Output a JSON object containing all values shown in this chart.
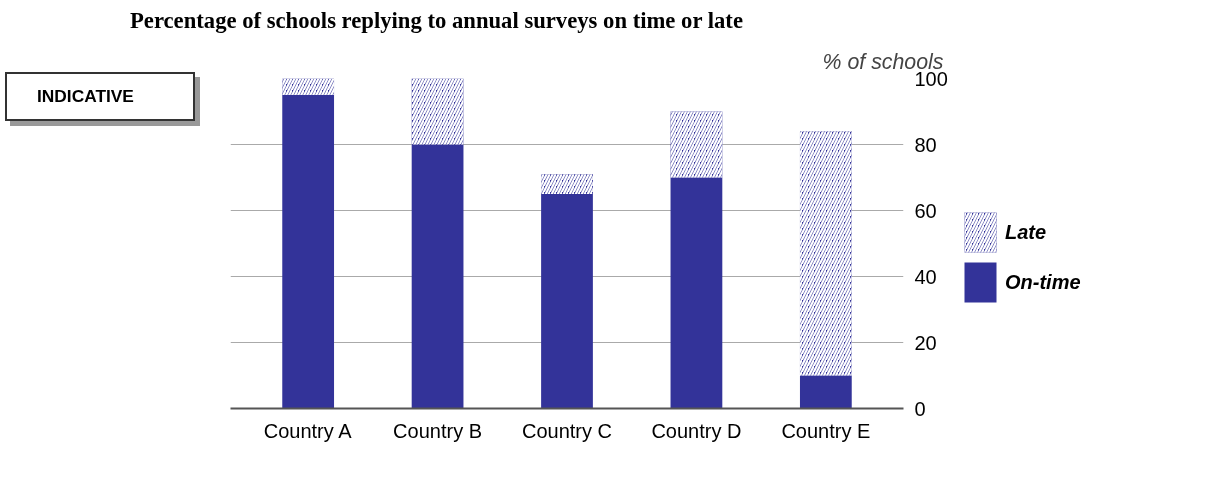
{
  "chart_data": {
    "type": "bar",
    "title": "Percentage of schools replying to annual surveys on time or late",
    "ylabel": "% of schools",
    "annotations": [
      "INDICATIVE"
    ],
    "categories": [
      "Country A",
      "Country B",
      "Country C",
      "Country D",
      "Country E"
    ],
    "stacked": true,
    "series": [
      {
        "name": "On-time",
        "color": "#333399",
        "values": [
          95,
          80,
          65,
          70,
          10
        ]
      },
      {
        "name": "Late",
        "color": "#333399",
        "values": [
          5,
          20,
          6,
          20,
          74
        ]
      }
    ],
    "ylim": [
      0,
      100
    ],
    "yticks": [
      0,
      20,
      40,
      60,
      80,
      100
    ],
    "grid": "y",
    "legend": "right"
  }
}
